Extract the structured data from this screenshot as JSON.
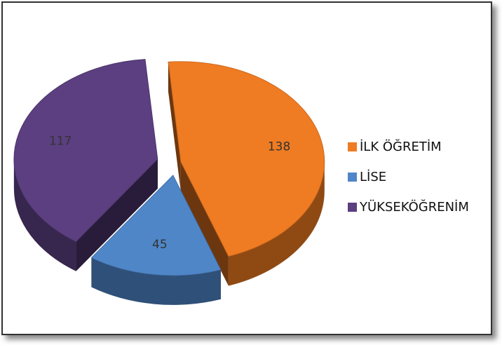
{
  "chart_data": {
    "type": "pie",
    "categories": [
      "İLK ÖĞRETİM",
      "LİSE",
      "YÜKSEKÖĞRENİM"
    ],
    "values": [
      138,
      45,
      117
    ],
    "colors": [
      "#ef7b22",
      "#4f86c8",
      "#5b3f80"
    ],
    "legend": "right"
  }
}
